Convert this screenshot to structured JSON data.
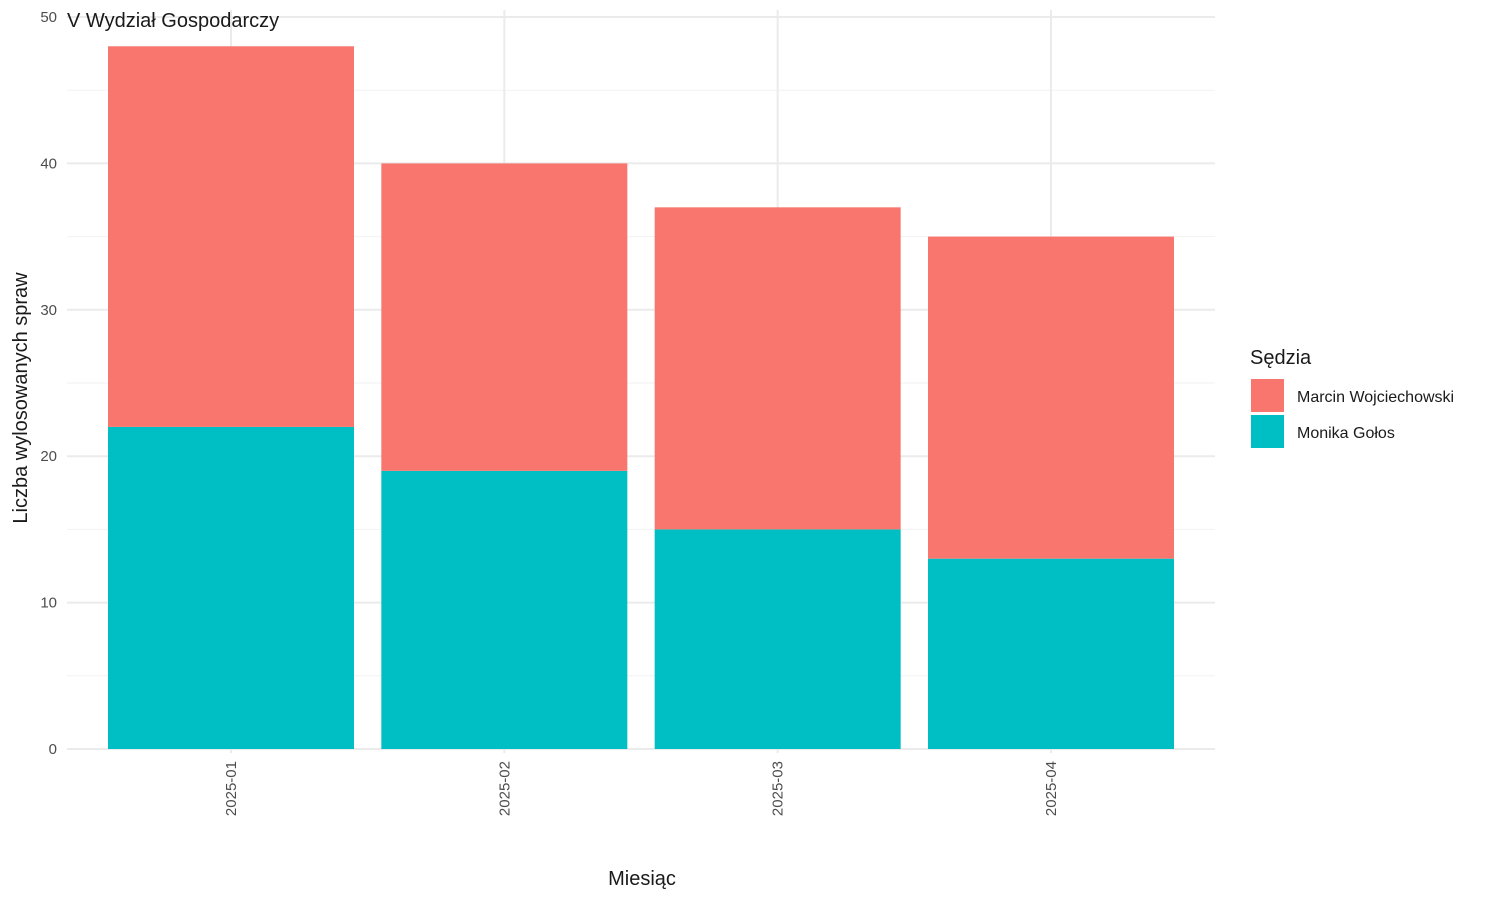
{
  "chart_data": {
    "type": "bar",
    "stacked": true,
    "panel_title": "V Wydział Gospodarczy",
    "xlabel": "Miesiąc",
    "ylabel": "Liczba wylosowanych spraw",
    "categories": [
      "2025-01",
      "2025-02",
      "2025-03",
      "2025-04"
    ],
    "ylim": [
      0,
      50
    ],
    "yticks": [
      0,
      10,
      20,
      30,
      40,
      50
    ],
    "grid": true,
    "legend": {
      "title": "Sędzia",
      "position": "right"
    },
    "series": [
      {
        "name": "Monika Gołos",
        "color": "#00BFC4",
        "values": [
          22,
          19,
          15,
          13
        ]
      },
      {
        "name": "Marcin Wojciechowski",
        "color": "#F8766D",
        "values": [
          26,
          21,
          22,
          22
        ]
      }
    ],
    "legend_order": [
      "Marcin Wojciechowski",
      "Monika Gołos"
    ]
  }
}
